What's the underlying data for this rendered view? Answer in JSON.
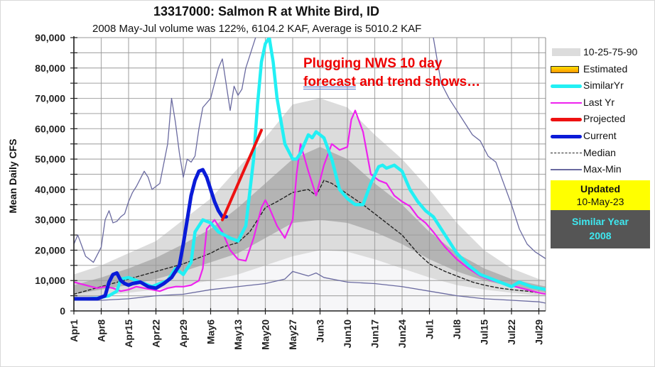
{
  "header": {
    "title": "13317000: Salmon R at White Bird, ID",
    "subtitle": "2008 May-Jul volume was 122%, 6104.2 KAF, Average is 5010.2 KAF"
  },
  "annotation": {
    "line1": "Plugging NWS 10 day",
    "line2_underlined": "forecast",
    "line2_rest": " and trend shows…"
  },
  "legend": {
    "items": [
      {
        "label": "10-25-75-90",
        "key": "band"
      },
      {
        "label": "Estimated",
        "key": "estimated"
      },
      {
        "label": "SimilarYr",
        "key": "similar"
      },
      {
        "label": "Last Yr",
        "key": "lastyr"
      },
      {
        "label": "Projected",
        "key": "projected"
      },
      {
        "label": "Current",
        "key": "current"
      },
      {
        "label": "Median",
        "key": "median"
      },
      {
        "label": "Max-Min",
        "key": "maxmin"
      }
    ]
  },
  "updated_box": {
    "label": "Updated",
    "date": "10-May-23"
  },
  "similar_year_box": {
    "label": "Similar Year",
    "year": "2008"
  },
  "colors": {
    "similar": "#22f0f4",
    "lastyr": "#ee22ee",
    "projected": "#ee1111",
    "current": "#0a1bd8",
    "median": "#222222",
    "maxmin": "#6a6aa0",
    "band10_90": "#dcdcdc",
    "band25_75": "#b4b4b4",
    "band_low": "#f6f6f8",
    "updated_bg": "#ffff00",
    "similar_bg": "#555555",
    "similar_text": "#3ee8f0",
    "annotation": "#ee0000"
  },
  "chart_data": {
    "type": "line",
    "title": "13317000: Salmon R at White Bird, ID",
    "subtitle": "2008 May-Jul volume was 122%, 6104.2 KAF, Average is 5010.2 KAF",
    "xlabel": "",
    "ylabel": "Mean Daily CFS",
    "ylim": [
      0,
      90000
    ],
    "yticks": [
      0,
      10000,
      20000,
      30000,
      40000,
      50000,
      60000,
      70000,
      80000,
      90000
    ],
    "ytick_labels": [
      "0",
      "10,000",
      "20,000",
      "30,000",
      "40,000",
      "50,000",
      "60,000",
      "70,000",
      "80,000",
      "90,000"
    ],
    "x_unit": "days since Apr 1",
    "xlim": [
      0,
      121
    ],
    "xticks": [
      0,
      7,
      14,
      21,
      28,
      35,
      42,
      49,
      56,
      63,
      70,
      77,
      84,
      91,
      98,
      105,
      112,
      119
    ],
    "xtick_labels": [
      "Apr1",
      "Apr8",
      "Apr15",
      "Apr22",
      "Apr29",
      "May6",
      "May13",
      "May20",
      "May27",
      "Jun3",
      "Jun10",
      "Jun17",
      "Jun24",
      "Jul1",
      "Jul8",
      "Jul15",
      "Jul22",
      "Jul29"
    ],
    "grid": true,
    "legend_position": "right",
    "bands": {
      "x": [
        0,
        7,
        14,
        21,
        28,
        35,
        42,
        49,
        56,
        63,
        70,
        77,
        84,
        91,
        98,
        105,
        112,
        119,
        121
      ],
      "p10": [
        4000,
        5000,
        6000,
        7000,
        8500,
        10000,
        12000,
        15000,
        18000,
        20000,
        19500,
        17000,
        14000,
        11000,
        8500,
        7000,
        6000,
        5000,
        5000
      ],
      "p25": [
        5500,
        7000,
        8500,
        10500,
        13000,
        16000,
        19000,
        24000,
        29000,
        30000,
        29000,
        26000,
        22000,
        17000,
        13000,
        10000,
        8000,
        6500,
        6000
      ],
      "p75": [
        8500,
        11000,
        14000,
        17500,
        22000,
        27000,
        34000,
        42000,
        50000,
        54000,
        50000,
        42000,
        35000,
        26000,
        19000,
        14000,
        10500,
        8500,
        8000
      ],
      "p90": [
        12000,
        15000,
        19000,
        23000,
        30000,
        37000,
        47000,
        57000,
        68000,
        70000,
        67000,
        58000,
        50000,
        40000,
        29000,
        20000,
        14000,
        10500,
        10000
      ]
    },
    "series": [
      {
        "name": "Max-Min (max)",
        "key": "maxmin",
        "x": [
          0,
          1,
          3,
          5,
          7,
          8,
          9,
          10,
          11,
          12,
          13,
          14,
          15,
          16,
          18,
          19,
          20,
          22,
          24,
          25,
          26,
          27,
          28,
          29,
          30,
          31,
          32,
          33,
          35,
          36,
          37,
          38,
          40,
          41,
          42,
          43,
          44,
          46,
          47,
          48,
          49,
          50,
          52,
          54,
          56,
          58,
          60,
          62,
          64,
          66,
          68,
          70,
          72,
          74,
          76,
          78,
          80,
          82,
          84,
          86,
          88,
          90,
          92,
          94,
          96,
          98,
          100,
          102,
          104,
          106,
          108,
          110,
          112,
          114,
          116,
          118,
          121
        ],
        "values": [
          22000,
          25000,
          18000,
          16000,
          21000,
          30000,
          33000,
          29000,
          29500,
          31000,
          32000,
          36000,
          39000,
          41000,
          46000,
          44000,
          40000,
          42000,
          55000,
          70000,
          62000,
          52000,
          44000,
          50000,
          49000,
          51000,
          60000,
          67000,
          70000,
          75000,
          80000,
          83000,
          66000,
          74000,
          71000,
          73000,
          80000,
          88000,
          92000,
          95000,
          95000,
          95000,
          95000,
          95000,
          95000,
          95000,
          95000,
          95000,
          95000,
          95000,
          95000,
          95000,
          95000,
          95000,
          95000,
          95000,
          95000,
          95000,
          95000,
          95000,
          95000,
          95000,
          90000,
          75000,
          70000,
          66000,
          62000,
          58000,
          56000,
          51000,
          49000,
          42000,
          35000,
          27000,
          22000,
          19500,
          17000
        ]
      },
      {
        "name": "Max-Min (min)",
        "key": "maxmin",
        "x": [
          0,
          7,
          14,
          21,
          28,
          35,
          42,
          49,
          54,
          56,
          60,
          62,
          64,
          70,
          77,
          84,
          91,
          98,
          105,
          112,
          119,
          121
        ],
        "values": [
          3500,
          3500,
          4000,
          5000,
          5500,
          7000,
          8000,
          9000,
          10500,
          13000,
          11500,
          12500,
          11000,
          9500,
          9000,
          8000,
          6500,
          5000,
          4000,
          3500,
          3000,
          2500
        ]
      },
      {
        "name": "Median",
        "key": "median",
        "x": [
          0,
          7,
          14,
          21,
          28,
          35,
          38,
          42,
          45,
          49,
          52,
          56,
          58,
          60,
          62,
          64,
          66,
          70,
          74,
          77,
          81,
          84,
          88,
          91,
          95,
          98,
          102,
          105,
          109,
          112,
          116,
          119,
          121
        ],
        "values": [
          5500,
          8000,
          10500,
          13000,
          15500,
          19000,
          21000,
          22500,
          26000,
          34000,
          36000,
          39000,
          39500,
          40000,
          38000,
          43000,
          42000,
          38500,
          35000,
          32000,
          28000,
          25000,
          19000,
          15500,
          13000,
          11500,
          9500,
          8500,
          7500,
          7000,
          6500,
          6000,
          5500
        ]
      },
      {
        "name": "Last Yr",
        "key": "lastyr",
        "x": [
          0,
          3,
          6,
          8,
          10,
          12,
          14,
          16,
          18,
          20,
          22,
          24,
          26,
          28,
          30,
          32,
          33,
          34,
          36,
          38,
          40,
          42,
          44,
          46,
          48,
          49,
          50,
          52,
          54,
          56,
          57,
          58,
          60,
          62,
          64,
          66,
          68,
          70,
          71,
          72,
          74,
          76,
          78,
          80,
          82,
          84,
          86,
          88,
          90,
          92,
          95,
          98,
          101,
          104,
          107,
          110,
          113,
          116,
          119,
          121
        ],
        "values": [
          9500,
          8500,
          7500,
          8000,
          7500,
          6500,
          7000,
          8000,
          7500,
          7000,
          6500,
          7500,
          8000,
          8000,
          8500,
          10000,
          14000,
          27000,
          30000,
          26000,
          20000,
          17000,
          16500,
          24000,
          34000,
          36500,
          34000,
          28000,
          24000,
          30000,
          45000,
          55000,
          46000,
          38000,
          48000,
          55000,
          53000,
          54000,
          63000,
          66000,
          59000,
          45000,
          43000,
          42000,
          38000,
          36000,
          34500,
          31000,
          29000,
          26000,
          21000,
          17000,
          14000,
          11500,
          10000,
          9000,
          8000,
          7000,
          6000,
          5500
        ]
      },
      {
        "name": "SimilarYr",
        "key": "similar",
        "x": [
          0,
          3,
          6,
          9,
          11,
          12,
          14,
          16,
          18,
          20,
          22,
          24,
          26,
          28,
          30,
          31,
          33,
          35,
          37,
          40,
          42,
          44,
          46,
          47,
          48,
          49,
          50,
          51,
          52,
          54,
          56,
          57,
          58,
          60,
          61,
          62,
          64,
          66,
          68,
          70,
          72,
          74,
          76,
          78,
          79,
          80,
          82,
          84,
          86,
          88,
          90,
          92,
          95,
          98,
          101,
          104,
          107,
          110,
          112,
          114,
          117,
          121
        ],
        "values": [
          4000,
          4000,
          4200,
          5000,
          6500,
          10500,
          11000,
          10000,
          9000,
          8000,
          9000,
          10000,
          14000,
          12000,
          16000,
          26000,
          30000,
          29000,
          26000,
          24000,
          23000,
          28000,
          50000,
          68000,
          82000,
          88000,
          90000,
          82000,
          70000,
          55000,
          50000,
          50000,
          52000,
          58000,
          57000,
          59000,
          57000,
          50000,
          40000,
          37000,
          35000,
          35000,
          42000,
          47500,
          48000,
          47000,
          48000,
          46000,
          40000,
          36000,
          33000,
          31000,
          25000,
          19000,
          15000,
          12000,
          10500,
          9000,
          8000,
          9500,
          8000,
          7000
        ]
      },
      {
        "name": "Current",
        "key": "current",
        "x": [
          0,
          3,
          6,
          8,
          9,
          10,
          11,
          12,
          13,
          14,
          15,
          17,
          19,
          21,
          23,
          25,
          27,
          28,
          29,
          30,
          31,
          32,
          33,
          34,
          35,
          36,
          37,
          38,
          39
        ],
        "values": [
          4000,
          4000,
          4000,
          5000,
          9500,
          12000,
          12500,
          10000,
          9000,
          8500,
          9000,
          9500,
          8000,
          7500,
          9000,
          11000,
          15000,
          22000,
          30000,
          38000,
          43000,
          46000,
          46500,
          44000,
          40000,
          36000,
          33000,
          31000,
          31000
        ]
      },
      {
        "name": "Projected",
        "key": "projected",
        "x": [
          38,
          48
        ],
        "values": [
          30000,
          59500
        ]
      }
    ]
  }
}
